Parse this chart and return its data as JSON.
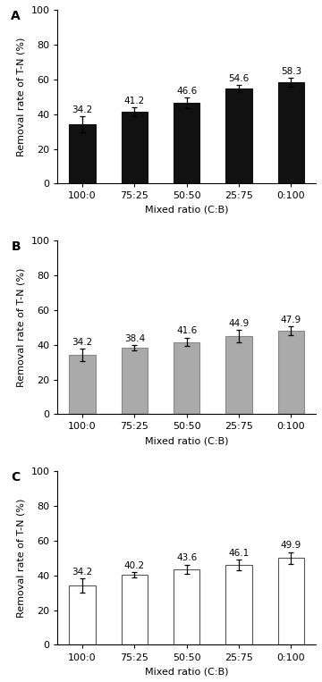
{
  "categories": [
    "100:0",
    "75:25",
    "50:50",
    "25:75",
    "0:100"
  ],
  "panels": [
    {
      "label": "A",
      "values": [
        34.2,
        41.2,
        46.6,
        54.6,
        58.3
      ],
      "errors": [
        4.5,
        2.5,
        3.0,
        2.0,
        2.5
      ],
      "bar_color": "#111111",
      "edge_color": "#111111"
    },
    {
      "label": "B",
      "values": [
        34.2,
        38.4,
        41.6,
        44.9,
        47.9
      ],
      "errors": [
        3.5,
        1.5,
        2.5,
        3.5,
        2.5
      ],
      "bar_color": "#aaaaaa",
      "edge_color": "#888888"
    },
    {
      "label": "C",
      "values": [
        34.2,
        40.2,
        43.6,
        46.1,
        49.9
      ],
      "errors": [
        4.0,
        1.5,
        2.5,
        3.0,
        3.5
      ],
      "bar_color": "#ffffff",
      "edge_color": "#555555"
    }
  ],
  "ylabel": "Removal rate of T-N (%)",
  "xlabel": "Mixed ratio (C:B)",
  "ylim": [
    0,
    100
  ],
  "yticks": [
    0,
    20,
    40,
    60,
    80,
    100
  ],
  "label_fontsize": 8,
  "tick_fontsize": 8,
  "value_fontsize": 7.5,
  "panel_label_fontsize": 10,
  "bar_width": 0.5,
  "figure_width": 3.6,
  "figure_height": 7.63
}
